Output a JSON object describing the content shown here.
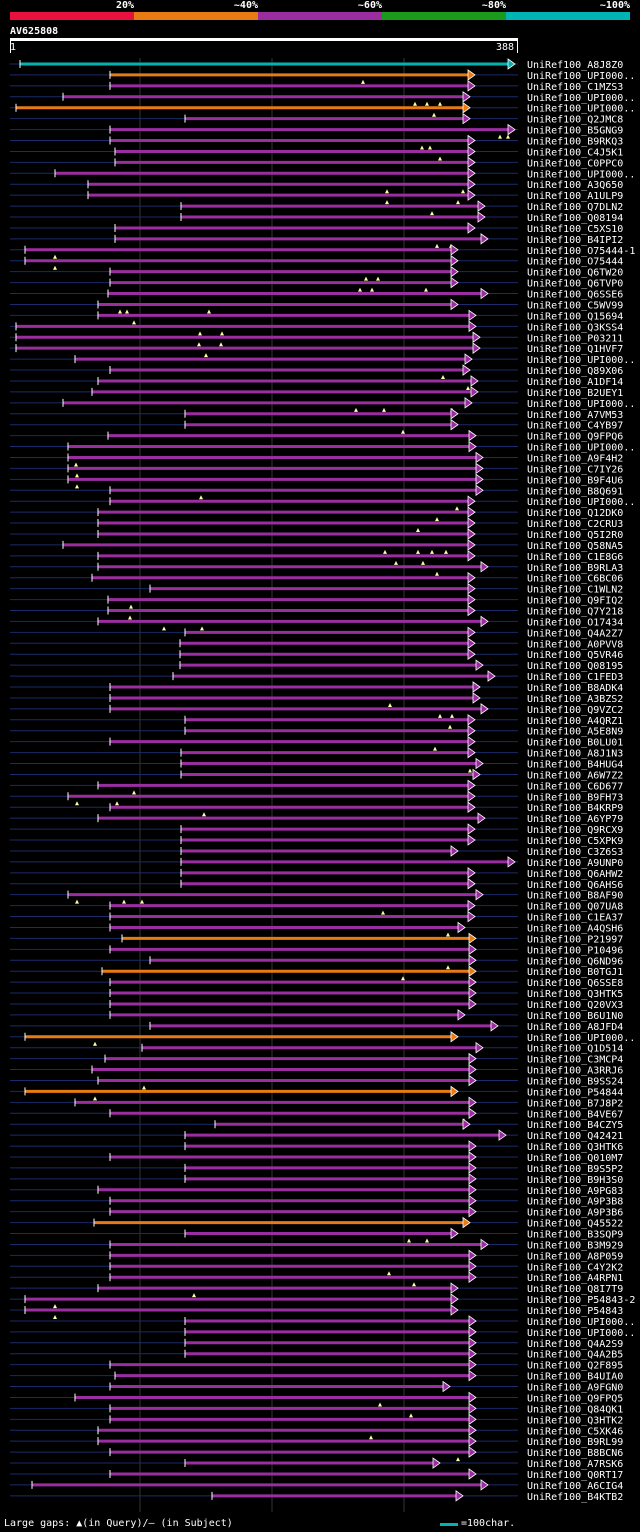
{
  "legend": {
    "labels": [
      "20%",
      "~40%",
      "~60%",
      "~80%",
      "~100%"
    ],
    "colors": [
      "#e8103c",
      "#e87a14",
      "#9a2ea0",
      "#1a9a1a",
      "#00b4b4"
    ]
  },
  "query": {
    "id": "AV625808",
    "start": "1",
    "end": "388"
  },
  "hits": [
    {
      "name": "UniRef100_A8J8Z0",
      "s": 20,
      "e": 515,
      "c": "#00b4b4",
      "tri": []
    },
    {
      "name": "UniRef100_UPI000..",
      "s": 110,
      "e": 475,
      "c": "#e87a14",
      "tri": [
        363
      ]
    },
    {
      "name": "UniRef100_C1MZS3",
      "s": 110,
      "e": 475,
      "c": "#9a2ea0",
      "tri": []
    },
    {
      "name": "UniRef100_UPI000..",
      "s": 63,
      "e": 470,
      "c": "#9a2ea0",
      "tri": [
        415,
        427,
        440
      ]
    },
    {
      "name": "UniRef100_UPI000..",
      "s": 16,
      "e": 470,
      "c": "#e87a14",
      "tri": [
        434
      ]
    },
    {
      "name": "UniRef100_Q2JMC8",
      "s": 185,
      "e": 470,
      "c": "#9a2ea0",
      "tri": []
    },
    {
      "name": "UniRef100_B5GNG9",
      "s": 110,
      "e": 515,
      "c": "#9a2ea0",
      "tri": [
        500,
        508
      ]
    },
    {
      "name": "UniRef100_B9RKQ3",
      "s": 110,
      "e": 475,
      "c": "#9a2ea0",
      "tri": [
        422,
        430
      ]
    },
    {
      "name": "UniRef100_C4J5K1",
      "s": 115,
      "e": 475,
      "c": "#9a2ea0",
      "tri": [
        440
      ]
    },
    {
      "name": "UniRef100_C0PPC0",
      "s": 115,
      "e": 475,
      "c": "#9a2ea0",
      "tri": []
    },
    {
      "name": "UniRef100_UPI000..",
      "s": 55,
      "e": 475,
      "c": "#9a2ea0",
      "tri": []
    },
    {
      "name": "UniRef100_A3Q650",
      "s": 88,
      "e": 475,
      "c": "#9a2ea0",
      "tri": [
        387,
        463
      ]
    },
    {
      "name": "UniRef100_A1ULP9",
      "s": 88,
      "e": 475,
      "c": "#9a2ea0",
      "tri": [
        387,
        458
      ]
    },
    {
      "name": "UniRef100_Q7DLN2",
      "s": 181,
      "e": 485,
      "c": "#9a2ea0",
      "tri": [
        432
      ]
    },
    {
      "name": "UniRef100_Q08194",
      "s": 181,
      "e": 485,
      "c": "#9a2ea0",
      "tri": []
    },
    {
      "name": "UniRef100_C5XS10",
      "s": 115,
      "e": 475,
      "c": "#9a2ea0",
      "tri": []
    },
    {
      "name": "UniRef100_B4IPI2",
      "s": 115,
      "e": 488,
      "c": "#9a2ea0",
      "tri": [
        437,
        451
      ]
    },
    {
      "name": "UniRef100_O75444-1",
      "s": 25,
      "e": 458,
      "c": "#9a2ea0",
      "tri": [
        55
      ]
    },
    {
      "name": "UniRef100_O75444",
      "s": 25,
      "e": 458,
      "c": "#9a2ea0",
      "tri": [
        55
      ]
    },
    {
      "name": "UniRef100_Q6TW20",
      "s": 110,
      "e": 458,
      "c": "#9a2ea0",
      "tri": [
        366,
        378
      ]
    },
    {
      "name": "UniRef100_Q6TVP0",
      "s": 110,
      "e": 458,
      "c": "#9a2ea0",
      "tri": [
        360,
        372,
        426
      ]
    },
    {
      "name": "UniRef100_Q6SSE6",
      "s": 108,
      "e": 488,
      "c": "#9a2ea0",
      "tri": []
    },
    {
      "name": "UniRef100_C5WV99",
      "s": 98,
      "e": 458,
      "c": "#9a2ea0",
      "tri": [
        120,
        127,
        209
      ]
    },
    {
      "name": "UniRef100_Q15694",
      "s": 98,
      "e": 476,
      "c": "#9a2ea0",
      "tri": [
        134
      ]
    },
    {
      "name": "UniRef100_Q3KSS4",
      "s": 16,
      "e": 476,
      "c": "#9a2ea0",
      "tri": [
        200,
        222
      ]
    },
    {
      "name": "UniRef100_P03211",
      "s": 16,
      "e": 480,
      "c": "#9a2ea0",
      "tri": [
        199,
        221
      ]
    },
    {
      "name": "UniRef100_Q1HVF7",
      "s": 16,
      "e": 480,
      "c": "#9a2ea0",
      "tri": [
        206
      ]
    },
    {
      "name": "UniRef100_UPI000..",
      "s": 75,
      "e": 472,
      "c": "#9a2ea0",
      "tri": []
    },
    {
      "name": "UniRef100_Q89X06",
      "s": 110,
      "e": 470,
      "c": "#9a2ea0",
      "tri": [
        443
      ]
    },
    {
      "name": "UniRef100_A1DF14",
      "s": 98,
      "e": 478,
      "c": "#9a2ea0",
      "tri": [
        468
      ]
    },
    {
      "name": "UniRef100_B2UEY1",
      "s": 92,
      "e": 478,
      "c": "#9a2ea0",
      "tri": []
    },
    {
      "name": "UniRef100_UPI000..",
      "s": 63,
      "e": 472,
      "c": "#9a2ea0",
      "tri": [
        356,
        384,
        452
      ]
    },
    {
      "name": "UniRef100_A7VM53",
      "s": 185,
      "e": 458,
      "c": "#9a2ea0",
      "tri": []
    },
    {
      "name": "UniRef100_C4YB97",
      "s": 185,
      "e": 458,
      "c": "#9a2ea0",
      "tri": [
        403
      ]
    },
    {
      "name": "UniRef100_Q9FPQ6",
      "s": 108,
      "e": 476,
      "c": "#9a2ea0",
      "tri": []
    },
    {
      "name": "UniRef100_UPI000..",
      "s": 68,
      "e": 476,
      "c": "#9a2ea0",
      "tri": []
    },
    {
      "name": "UniRef100_A9F4H2",
      "s": 68,
      "e": 483,
      "c": "#9a2ea0",
      "tri": [
        76
      ]
    },
    {
      "name": "UniRef100_C7IY26",
      "s": 68,
      "e": 483,
      "c": "#9a2ea0",
      "tri": [
        77
      ]
    },
    {
      "name": "UniRef100_B9F4U6",
      "s": 68,
      "e": 483,
      "c": "#9a2ea0",
      "tri": [
        77
      ]
    },
    {
      "name": "UniRef100_B8Q691",
      "s": 110,
      "e": 483,
      "c": "#9a2ea0",
      "tri": [
        201
      ]
    },
    {
      "name": "UniRef100_UPI000..",
      "s": 110,
      "e": 475,
      "c": "#9a2ea0",
      "tri": [
        457
      ]
    },
    {
      "name": "UniRef100_Q12DK0",
      "s": 98,
      "e": 475,
      "c": "#9a2ea0",
      "tri": [
        437
      ]
    },
    {
      "name": "UniRef100_C2CRU3",
      "s": 98,
      "e": 475,
      "c": "#9a2ea0",
      "tri": [
        418
      ]
    },
    {
      "name": "UniRef100_Q5I2R0",
      "s": 98,
      "e": 475,
      "c": "#9a2ea0",
      "tri": []
    },
    {
      "name": "UniRef100_Q58NA5",
      "s": 63,
      "e": 475,
      "c": "#9a2ea0",
      "tri": [
        385,
        418,
        432,
        446
      ]
    },
    {
      "name": "UniRef100_C1E8G6",
      "s": 98,
      "e": 475,
      "c": "#9a2ea0",
      "tri": [
        396,
        423
      ]
    },
    {
      "name": "UniRef100_B9RLA3",
      "s": 98,
      "e": 488,
      "c": "#9a2ea0",
      "tri": [
        437
      ]
    },
    {
      "name": "UniRef100_C6BC06",
      "s": 92,
      "e": 475,
      "c": "#9a2ea0",
      "tri": []
    },
    {
      "name": "UniRef100_C1WLN2",
      "s": 150,
      "e": 475,
      "c": "#9a2ea0",
      "tri": []
    },
    {
      "name": "UniRef100_Q9FIQ2",
      "s": 108,
      "e": 475,
      "c": "#9a2ea0",
      "tri": [
        131
      ]
    },
    {
      "name": "UniRef100_Q7Y218",
      "s": 108,
      "e": 475,
      "c": "#9a2ea0",
      "tri": [
        130
      ]
    },
    {
      "name": "UniRef100_O17434",
      "s": 98,
      "e": 488,
      "c": "#9a2ea0",
      "tri": [
        164,
        202
      ]
    },
    {
      "name": "UniRef100_Q4A2Z7",
      "s": 185,
      "e": 475,
      "c": "#9a2ea0",
      "tri": []
    },
    {
      "name": "UniRef100_A0PVV8",
      "s": 180,
      "e": 475,
      "c": "#9a2ea0",
      "tri": []
    },
    {
      "name": "UniRef100_Q5VR46",
      "s": 180,
      "e": 475,
      "c": "#9a2ea0",
      "tri": []
    },
    {
      "name": "UniRef100_Q08195",
      "s": 180,
      "e": 483,
      "c": "#9a2ea0",
      "tri": []
    },
    {
      "name": "UniRef100_C1FED3",
      "s": 173,
      "e": 495,
      "c": "#9a2ea0",
      "tri": []
    },
    {
      "name": "UniRef100_B8ADK4",
      "s": 110,
      "e": 480,
      "c": "#9a2ea0",
      "tri": []
    },
    {
      "name": "UniRef100_A3BZS2",
      "s": 110,
      "e": 480,
      "c": "#9a2ea0",
      "tri": [
        390
      ]
    },
    {
      "name": "UniRef100_Q9VZC2",
      "s": 110,
      "e": 488,
      "c": "#9a2ea0",
      "tri": [
        440,
        452
      ]
    },
    {
      "name": "UniRef100_A4QRZ1",
      "s": 185,
      "e": 475,
      "c": "#9a2ea0",
      "tri": [
        450
      ]
    },
    {
      "name": "UniRef100_A5E8N9",
      "s": 185,
      "e": 475,
      "c": "#9a2ea0",
      "tri": []
    },
    {
      "name": "UniRef100_B0LU01",
      "s": 110,
      "e": 475,
      "c": "#9a2ea0",
      "tri": [
        435
      ]
    },
    {
      "name": "UniRef100_A8J1N3",
      "s": 181,
      "e": 475,
      "c": "#9a2ea0",
      "tri": []
    },
    {
      "name": "UniRef100_B4HUG4",
      "s": 181,
      "e": 483,
      "c": "#9a2ea0",
      "tri": [
        470
      ]
    },
    {
      "name": "UniRef100_A6W7Z2",
      "s": 181,
      "e": 480,
      "c": "#9a2ea0",
      "tri": []
    },
    {
      "name": "UniRef100_C6D677",
      "s": 98,
      "e": 475,
      "c": "#9a2ea0",
      "tri": [
        134
      ]
    },
    {
      "name": "UniRef100_B9FH73",
      "s": 68,
      "e": 475,
      "c": "#9a2ea0",
      "tri": [
        77,
        117
      ]
    },
    {
      "name": "UniRef100_B4KRP9",
      "s": 110,
      "e": 475,
      "c": "#9a2ea0",
      "tri": [
        204
      ]
    },
    {
      "name": "UniRef100_A6YP79",
      "s": 98,
      "e": 485,
      "c": "#9a2ea0",
      "tri": []
    },
    {
      "name": "UniRef100_Q9RCX9",
      "s": 181,
      "e": 475,
      "c": "#9a2ea0",
      "tri": []
    },
    {
      "name": "UniRef100_C5XPK9",
      "s": 181,
      "e": 475,
      "c": "#9a2ea0",
      "tri": []
    },
    {
      "name": "UniRef100_C3Z6S3",
      "s": 181,
      "e": 458,
      "c": "#9a2ea0",
      "tri": []
    },
    {
      "name": "UniRef100_A9UNP0",
      "s": 181,
      "e": 515,
      "c": "#9a2ea0",
      "tri": []
    },
    {
      "name": "UniRef100_Q6AHW2",
      "s": 181,
      "e": 475,
      "c": "#9a2ea0",
      "tri": []
    },
    {
      "name": "UniRef100_Q6AHS6",
      "s": 181,
      "e": 475,
      "c": "#9a2ea0",
      "tri": []
    },
    {
      "name": "UniRef100_B8AF90",
      "s": 68,
      "e": 483,
      "c": "#9a2ea0",
      "tri": [
        77,
        124,
        142
      ]
    },
    {
      "name": "UniRef100_Q07UA8",
      "s": 110,
      "e": 475,
      "c": "#9a2ea0",
      "tri": [
        383
      ]
    },
    {
      "name": "UniRef100_C1EA37",
      "s": 110,
      "e": 475,
      "c": "#9a2ea0",
      "tri": []
    },
    {
      "name": "UniRef100_A4QSH6",
      "s": 110,
      "e": 465,
      "c": "#9a2ea0",
      "tri": [
        448
      ]
    },
    {
      "name": "UniRef100_P21997",
      "s": 122,
      "e": 476,
      "c": "#e87a14",
      "tri": []
    },
    {
      "name": "UniRef100_P10496",
      "s": 110,
      "e": 476,
      "c": "#9a2ea0",
      "tri": []
    },
    {
      "name": "UniRef100_Q6ND96",
      "s": 150,
      "e": 476,
      "c": "#9a2ea0",
      "tri": [
        448
      ]
    },
    {
      "name": "UniRef100_B0TGJ1",
      "s": 102,
      "e": 476,
      "c": "#e87a14",
      "tri": [
        403
      ]
    },
    {
      "name": "UniRef100_Q6SSE8",
      "s": 110,
      "e": 476,
      "c": "#9a2ea0",
      "tri": []
    },
    {
      "name": "UniRef100_Q3HTK5",
      "s": 110,
      "e": 476,
      "c": "#9a2ea0",
      "tri": []
    },
    {
      "name": "UniRef100_Q20VX3",
      "s": 110,
      "e": 476,
      "c": "#9a2ea0",
      "tri": []
    },
    {
      "name": "UniRef100_B6U1N0",
      "s": 110,
      "e": 465,
      "c": "#9a2ea0",
      "tri": []
    },
    {
      "name": "UniRef100_A8JFD4",
      "s": 150,
      "e": 498,
      "c": "#9a2ea0",
      "tri": []
    },
    {
      "name": "UniRef100_UPI000..",
      "s": 25,
      "e": 458,
      "c": "#e87a14",
      "tri": [
        95
      ]
    },
    {
      "name": "UniRef100_Q1D514",
      "s": 142,
      "e": 483,
      "c": "#9a2ea0",
      "tri": []
    },
    {
      "name": "UniRef100_C3MCP4",
      "s": 105,
      "e": 476,
      "c": "#9a2ea0",
      "tri": []
    },
    {
      "name": "UniRef100_A3RRJ6",
      "s": 92,
      "e": 476,
      "c": "#9a2ea0",
      "tri": []
    },
    {
      "name": "UniRef100_B9SS24",
      "s": 98,
      "e": 476,
      "c": "#9a2ea0",
      "tri": [
        144
      ]
    },
    {
      "name": "UniRef100_P54844",
      "s": 25,
      "e": 458,
      "c": "#e87a14",
      "tri": [
        95
      ]
    },
    {
      "name": "UniRef100_B7J8P2",
      "s": 75,
      "e": 476,
      "c": "#9a2ea0",
      "tri": []
    },
    {
      "name": "UniRef100_B4VE67",
      "s": 110,
      "e": 476,
      "c": "#9a2ea0",
      "tri": [
        464
      ]
    },
    {
      "name": "UniRef100_B4CZY5",
      "s": 215,
      "e": 470,
      "c": "#9a2ea0",
      "tri": []
    },
    {
      "name": "UniRef100_Q42421",
      "s": 185,
      "e": 506,
      "c": "#9a2ea0",
      "tri": []
    },
    {
      "name": "UniRef100_Q3HTK6",
      "s": 185,
      "e": 476,
      "c": "#9a2ea0",
      "tri": []
    },
    {
      "name": "UniRef100_Q010M7",
      "s": 110,
      "e": 476,
      "c": "#9a2ea0",
      "tri": []
    },
    {
      "name": "UniRef100_B9S5P2",
      "s": 185,
      "e": 476,
      "c": "#9a2ea0",
      "tri": []
    },
    {
      "name": "UniRef100_B9H3S0",
      "s": 185,
      "e": 476,
      "c": "#9a2ea0",
      "tri": []
    },
    {
      "name": "UniRef100_A9PG83",
      "s": 98,
      "e": 476,
      "c": "#9a2ea0",
      "tri": []
    },
    {
      "name": "UniRef100_A9P3B8",
      "s": 110,
      "e": 476,
      "c": "#9a2ea0",
      "tri": []
    },
    {
      "name": "UniRef100_A9P3B6",
      "s": 110,
      "e": 476,
      "c": "#9a2ea0",
      "tri": []
    },
    {
      "name": "UniRef100_Q45522",
      "s": 94,
      "e": 470,
      "c": "#e87a14",
      "tri": []
    },
    {
      "name": "UniRef100_B3SQP9",
      "s": 185,
      "e": 458,
      "c": "#9a2ea0",
      "tri": [
        409,
        427
      ]
    },
    {
      "name": "UniRef100_B3M929",
      "s": 110,
      "e": 488,
      "c": "#9a2ea0",
      "tri": []
    },
    {
      "name": "UniRef100_A8P059",
      "s": 110,
      "e": 476,
      "c": "#9a2ea0",
      "tri": []
    },
    {
      "name": "UniRef100_C4Y2K2",
      "s": 110,
      "e": 476,
      "c": "#9a2ea0",
      "tri": [
        389
      ]
    },
    {
      "name": "UniRef100_A4RPN1",
      "s": 110,
      "e": 476,
      "c": "#9a2ea0",
      "tri": [
        414
      ]
    },
    {
      "name": "UniRef100_Q8I7T9",
      "s": 98,
      "e": 458,
      "c": "#9a2ea0",
      "tri": [
        194
      ]
    },
    {
      "name": "UniRef100_P54843-2",
      "s": 25,
      "e": 458,
      "c": "#9a2ea0",
      "tri": [
        55
      ]
    },
    {
      "name": "UniRef100_P54843",
      "s": 25,
      "e": 458,
      "c": "#9a2ea0",
      "tri": [
        55
      ]
    },
    {
      "name": "UniRef100_UPI000..",
      "s": 185,
      "e": 476,
      "c": "#9a2ea0",
      "tri": []
    },
    {
      "name": "UniRef100_UPI000..",
      "s": 185,
      "e": 476,
      "c": "#9a2ea0",
      "tri": []
    },
    {
      "name": "UniRef100_Q4A2S9",
      "s": 185,
      "e": 476,
      "c": "#9a2ea0",
      "tri": []
    },
    {
      "name": "UniRef100_Q4A2B5",
      "s": 185,
      "e": 476,
      "c": "#9a2ea0",
      "tri": []
    },
    {
      "name": "UniRef100_Q2F895",
      "s": 110,
      "e": 476,
      "c": "#9a2ea0",
      "tri": []
    },
    {
      "name": "UniRef100_B4UIA0",
      "s": 115,
      "e": 476,
      "c": "#9a2ea0",
      "tri": []
    },
    {
      "name": "UniRef100_A9FGN0",
      "s": 110,
      "e": 450,
      "c": "#9a2ea0",
      "tri": []
    },
    {
      "name": "UniRef100_Q9FPQ5",
      "s": 75,
      "e": 476,
      "c": "#9a2ea0",
      "tri": [
        380
      ]
    },
    {
      "name": "UniRef100_Q84QK1",
      "s": 110,
      "e": 476,
      "c": "#9a2ea0",
      "tri": [
        411
      ]
    },
    {
      "name": "UniRef100_Q3HTK2",
      "s": 110,
      "e": 476,
      "c": "#9a2ea0",
      "tri": []
    },
    {
      "name": "UniRef100_C5XK46",
      "s": 98,
      "e": 476,
      "c": "#9a2ea0",
      "tri": [
        371
      ]
    },
    {
      "name": "UniRef100_B9RL99",
      "s": 98,
      "e": 476,
      "c": "#9a2ea0",
      "tri": []
    },
    {
      "name": "UniRef100_B8BCN6",
      "s": 110,
      "e": 476,
      "c": "#9a2ea0",
      "tri": [
        458
      ]
    },
    {
      "name": "UniRef100_A7RSK6",
      "s": 185,
      "e": 440,
      "c": "#9a2ea0",
      "tri": []
    },
    {
      "name": "UniRef100_Q0RT17",
      "s": 110,
      "e": 476,
      "c": "#9a2ea0",
      "tri": []
    },
    {
      "name": "UniRef100_A6CIG4",
      "s": 32,
      "e": 488,
      "c": "#9a2ea0",
      "tri": []
    },
    {
      "name": "UniRef100_B4KTB2",
      "s": 212,
      "e": 463,
      "c": "#9a2ea0",
      "tri": []
    }
  ],
  "footer": {
    "gaps_text": "Large gaps: ▲(in Query)/– (in Subject)",
    "scale_text": "=100char."
  }
}
